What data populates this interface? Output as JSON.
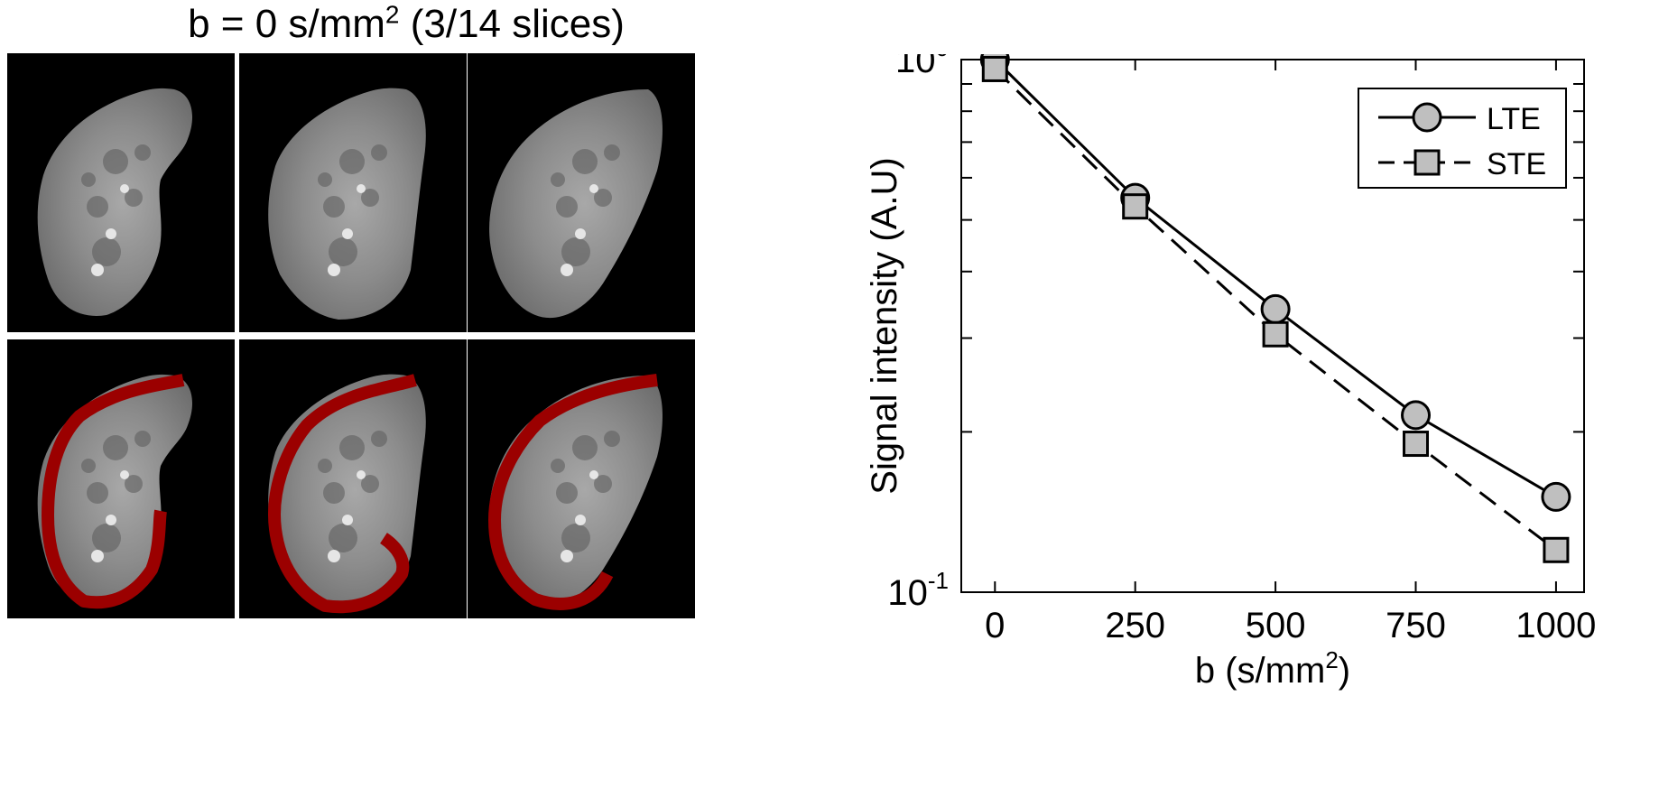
{
  "figure_title": {
    "prefix": "b = 0 s/mm",
    "superscript": "2",
    "suffix": " (3/14 slices)"
  },
  "image_grid": {
    "rows": 2,
    "cols": 3,
    "row_descriptions": [
      "kidney slices",
      "kidney slices with cortex segmentation overlay"
    ],
    "overlay_color": "#9b0000"
  },
  "chart_data": {
    "type": "line",
    "xlabel": "b (s/mm2)",
    "xlabel_parts": {
      "main": "b (s/mm",
      "sup": "2",
      "end": ")"
    },
    "ylabel": "Signal intensity (A.U)",
    "x": [
      0,
      250,
      500,
      750,
      1000
    ],
    "xticks": [
      "0",
      "250",
      "500",
      "750",
      "1000"
    ],
    "xlim": [
      -60,
      1050
    ],
    "yscale": "log",
    "ylim": [
      0.1,
      1.0
    ],
    "yticks": [
      {
        "value": 1.0,
        "base": "10",
        "exp": "0"
      },
      {
        "value": 0.1,
        "base": "10",
        "exp": "-1"
      }
    ],
    "series": [
      {
        "name": "LTE",
        "marker": "circle",
        "linestyle": "solid",
        "values": [
          1.0,
          0.55,
          0.34,
          0.215,
          0.151
        ]
      },
      {
        "name": "STE",
        "marker": "square",
        "linestyle": "dashed",
        "values": [
          0.96,
          0.53,
          0.305,
          0.19,
          0.12
        ]
      }
    ],
    "legend_position": "top-right",
    "marker_fill": "#bfbfbf",
    "line_color": "#000000"
  }
}
